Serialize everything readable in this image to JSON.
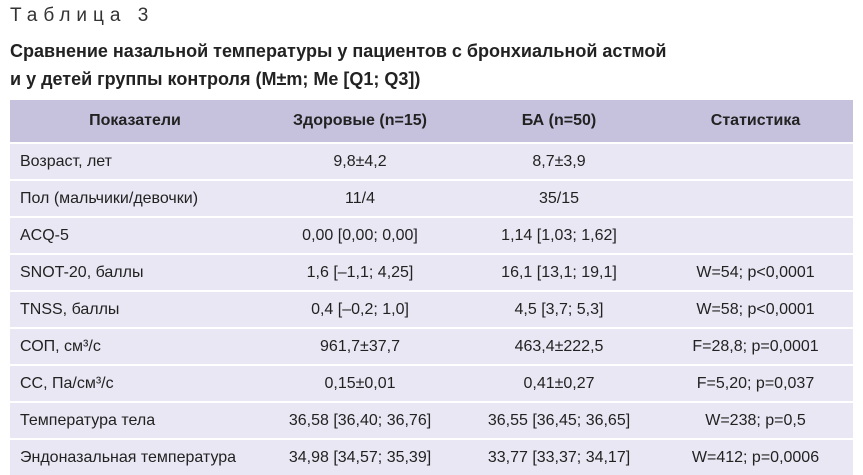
{
  "header": {
    "label": "Таблица 3",
    "title_lines": [
      "Сравнение назальной температуры у пациентов с бронхиальной астмой",
      "и у детей группы контроля (M±m; Me [Q1; Q3])"
    ]
  },
  "table": {
    "columns": [
      "Показатели",
      "Здоровые (n=15)",
      "БА (n=50)",
      "Статистика"
    ],
    "rows": [
      [
        "Возраст, лет",
        "9,8±4,2",
        "8,7±3,9"
      ],
      [
        "Пол (мальчики/девочки)",
        "11/4",
        "35/15"
      ],
      [
        "ACQ-5",
        "0,00 [0,00; 0,00]",
        "1,14 [1,03; 1,62]"
      ],
      [
        "SNOT-20, баллы",
        "1,6 [–1,1; 4,25]",
        "16,1 [13,1; 19,1]",
        "W=54; p<0,0001"
      ],
      [
        "TNSS, баллы",
        "0,4 [–0,2; 1,0]",
        "4,5 [3,7; 5,3]",
        "W=58; p<0,0001"
      ],
      [
        "СОП, см³/с",
        "961,7±37,7",
        "463,4±222,5",
        "F=28,8; p=0,0001"
      ],
      [
        "СС, Па/см³/с",
        "0,15±0,01",
        "0,41±0,27",
        "F=5,20; p=0,037"
      ],
      [
        "Температура тела",
        "36,58 [36,40; 36,76]",
        "36,55 [36,45; 36,65]",
        "W=238; p=0,5"
      ],
      [
        "Эндоназальная температура",
        "34,98 [34,57; 35,39]",
        "33,77 [33,37; 34,17]",
        "W=412; p=0,0006"
      ]
    ]
  }
}
